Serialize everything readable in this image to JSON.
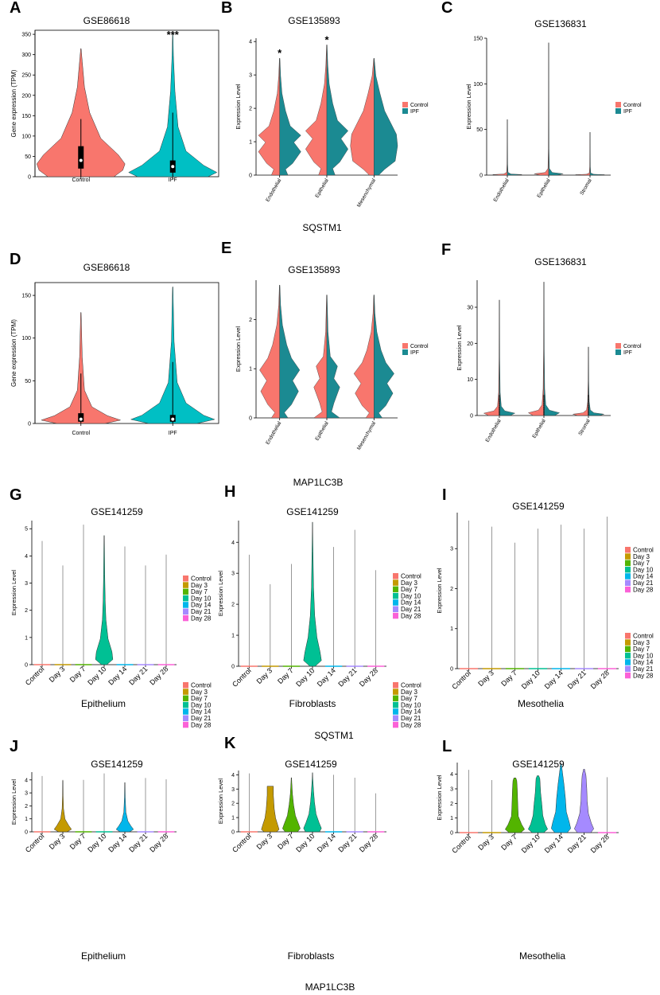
{
  "figure": {
    "row_labels": {
      "row1": "SQSTM1",
      "row2": "MAP1LC3B",
      "row3": "SQSTM1",
      "row4": "MAP1LC3B"
    }
  },
  "colors": {
    "control": "#F8766D",
    "ipf": "#00BFC4",
    "ipf_dark": "#1B8A92",
    "control_day": "#F8766D",
    "day3": "#C49A00",
    "day7": "#53B400",
    "day10": "#00C094",
    "day14": "#00B6EB",
    "day21": "#A58AFF",
    "day28": "#FB61D7"
  },
  "chart_data": [
    {
      "panel": "A",
      "type": "violin",
      "title": "GSE86618",
      "ylabel": "Gene expression (TPM)",
      "xlabel": "",
      "categories": [
        "Control",
        "IPF"
      ],
      "yticks": [
        0,
        50,
        100,
        150,
        200,
        250,
        300,
        350
      ],
      "ylim": [
        0,
        360
      ],
      "series": [
        {
          "name": "Control",
          "max": 315,
          "median": 40,
          "q1": 20,
          "q3": 75
        },
        {
          "name": "IPF",
          "max": 350,
          "median": 25,
          "q1": 10,
          "q3": 40
        }
      ],
      "annotations": [
        {
          "category": "IPF",
          "text": "***"
        }
      ]
    },
    {
      "panel": "B",
      "type": "split-violin",
      "title": "GSE135893",
      "ylabel": "Expression Level",
      "xlabel": "",
      "categories": [
        "Endothelial",
        "Epithelial",
        "Mesenchymal"
      ],
      "yticks": [
        0,
        1,
        2,
        3,
        4
      ],
      "ylim": [
        0,
        4.1
      ],
      "legend": [
        "Control",
        "IPF"
      ],
      "series": [
        {
          "name": "Control",
          "max": [
            3.5,
            3.9,
            3.5
          ]
        },
        {
          "name": "IPF",
          "max": [
            3.5,
            3.9,
            3.5
          ]
        }
      ],
      "annotations": [
        {
          "category": "Endothelial",
          "text": "*"
        },
        {
          "category": "Epithelial",
          "text": "*"
        }
      ]
    },
    {
      "panel": "C",
      "type": "split-violin",
      "title": "GSE136831",
      "ylabel": "Expression Level",
      "xlabel": "",
      "categories": [
        "Endothelial",
        "Epithelial",
        "Stromal"
      ],
      "yticks": [
        0,
        50,
        100,
        150
      ],
      "ylim": [
        0,
        150
      ],
      "legend": [
        "Control",
        "IPF"
      ],
      "series": [
        {
          "name": "Control",
          "max": [
            61,
            145,
            47
          ]
        },
        {
          "name": "IPF",
          "max": [
            61,
            145,
            47
          ]
        }
      ]
    },
    {
      "panel": "D",
      "type": "violin",
      "title": "GSE86618",
      "ylabel": "Gene expression (TPM)",
      "xlabel": "",
      "categories": [
        "Control",
        "IPF"
      ],
      "yticks": [
        0,
        50,
        100,
        150
      ],
      "ylim": [
        0,
        165
      ],
      "series": [
        {
          "name": "Control",
          "max": 130,
          "median": 5,
          "q1": 2,
          "q3": 12
        },
        {
          "name": "IPF",
          "max": 160,
          "median": 5,
          "q1": 2,
          "q3": 10
        }
      ]
    },
    {
      "panel": "E",
      "type": "split-violin",
      "title": "GSE135893",
      "ylabel": "Expression Level",
      "xlabel": "",
      "categories": [
        "Endothelial",
        "Epithelial",
        "Mesenchymal"
      ],
      "yticks": [
        0,
        1,
        2
      ],
      "ylim": [
        0,
        2.8
      ],
      "legend": [
        "Control",
        "IPF"
      ],
      "series": [
        {
          "name": "Control",
          "max": [
            2.7,
            2.5,
            2.5
          ]
        },
        {
          "name": "IPF",
          "max": [
            2.7,
            2.5,
            2.5
          ]
        }
      ]
    },
    {
      "panel": "F",
      "type": "split-violin",
      "title": "GSE136831",
      "ylabel": "Expression Level",
      "xlabel": "",
      "categories": [
        "Endothelial",
        "Epithelial",
        "Stromal"
      ],
      "yticks": [
        0,
        10,
        20,
        30
      ],
      "ylim": [
        0,
        37.5
      ],
      "legend": [
        "Control",
        "IPF"
      ],
      "series": [
        {
          "name": "Control",
          "max": [
            32,
            37,
            19
          ]
        },
        {
          "name": "IPF",
          "max": [
            32,
            37,
            19
          ]
        }
      ]
    },
    {
      "panel": "G",
      "type": "violin",
      "title": "GSE141259",
      "ylabel": "Expression Level",
      "xlabel": "Epithelium",
      "categories": [
        "Control",
        "Day 3",
        "Day 7",
        "Day 10",
        "Day 14",
        "Day 21",
        "Day 28"
      ],
      "yticks": [
        0,
        1,
        2,
        3,
        4,
        5
      ],
      "ylim": [
        0,
        5.3
      ],
      "values": [
        4.55,
        3.65,
        5.15,
        4.75,
        4.35,
        3.65,
        4.05
      ],
      "legend": [
        "Control",
        "Day 3",
        "Day 7",
        "Day 10",
        "Day 14",
        "Day 21",
        "Day 28"
      ]
    },
    {
      "panel": "H",
      "type": "violin",
      "title": "GSE141259",
      "ylabel": "Expression Level",
      "xlabel": "Fibroblasts",
      "categories": [
        "Control",
        "Day 3",
        "Day 7",
        "Day 10",
        "Day 14",
        "Day 21",
        "Day 28"
      ],
      "yticks": [
        0,
        1,
        2,
        3,
        4
      ],
      "ylim": [
        0,
        4.7
      ],
      "values": [
        3.6,
        2.65,
        3.3,
        4.65,
        3.85,
        4.4,
        3.1
      ],
      "legend": [
        "Control",
        "Day 3",
        "Day 7",
        "Day 10",
        "Day 14",
        "Day 21",
        "Day 28"
      ]
    },
    {
      "panel": "I",
      "type": "violin",
      "title": "GSE141259",
      "ylabel": "Expression Level",
      "xlabel": "Mesothelia",
      "categories": [
        "Control",
        "Day 3",
        "Day 7",
        "Day 10",
        "Day 14",
        "Day 21",
        "Day 28"
      ],
      "yticks": [
        0,
        1,
        2,
        3
      ],
      "ylim": [
        0,
        3.9
      ],
      "values": [
        3.7,
        3.55,
        3.15,
        3.5,
        3.6,
        3.5,
        3.8
      ],
      "legend": [
        "Control",
        "Day 3",
        "Day 7",
        "Day 10",
        "Day 14",
        "Day 21",
        "Day 28"
      ]
    },
    {
      "panel": "J",
      "type": "violin",
      "title": "GSE141259",
      "ylabel": "Expression Level",
      "xlabel": "Epithelium",
      "categories": [
        "Control",
        "Day 3",
        "Day 7",
        "Day 10",
        "Day 14",
        "Day 21",
        "Day 28"
      ],
      "yticks": [
        0,
        1,
        2,
        3,
        4
      ],
      "ylim": [
        0,
        4.6
      ],
      "values": [
        4.3,
        4.0,
        4.0,
        4.5,
        3.8,
        4.15,
        4.05
      ],
      "legend": [
        "Control",
        "Day 3",
        "Day 7",
        "Day 10",
        "Day 14",
        "Day 21",
        "Day 28"
      ]
    },
    {
      "panel": "K",
      "type": "violin",
      "title": "GSE141259",
      "ylabel": "Expression Level",
      "xlabel": "Fibroblasts",
      "categories": [
        "Control",
        "Day 3",
        "Day 7",
        "Day 10",
        "Day 14",
        "Day 21",
        "Day 28"
      ],
      "yticks": [
        0,
        1,
        2,
        3,
        4
      ],
      "ylim": [
        0,
        4.3
      ],
      "values": [
        4.1,
        3.2,
        3.8,
        4.15,
        4.0,
        3.8,
        2.7
      ],
      "legend": [
        "Control",
        "Day 3",
        "Day 7",
        "Day 10",
        "Day 14",
        "Day 21",
        "Day 28"
      ]
    },
    {
      "panel": "L",
      "type": "violin",
      "title": "GSE141259",
      "ylabel": "Expression Level",
      "xlabel": "Mesothelia",
      "categories": [
        "Control",
        "Day 3",
        "Day 7",
        "Day 10",
        "Day 14",
        "Day 21",
        "Day 28"
      ],
      "yticks": [
        0,
        1,
        2,
        3,
        4
      ],
      "ylim": [
        0,
        4.8
      ],
      "values": [
        4.3,
        3.6,
        3.75,
        3.9,
        4.7,
        4.35,
        3.8
      ],
      "legend": [
        "Control",
        "Day 3",
        "Day 7",
        "Day 10",
        "Day 14",
        "Day 21",
        "Day 28"
      ]
    }
  ]
}
